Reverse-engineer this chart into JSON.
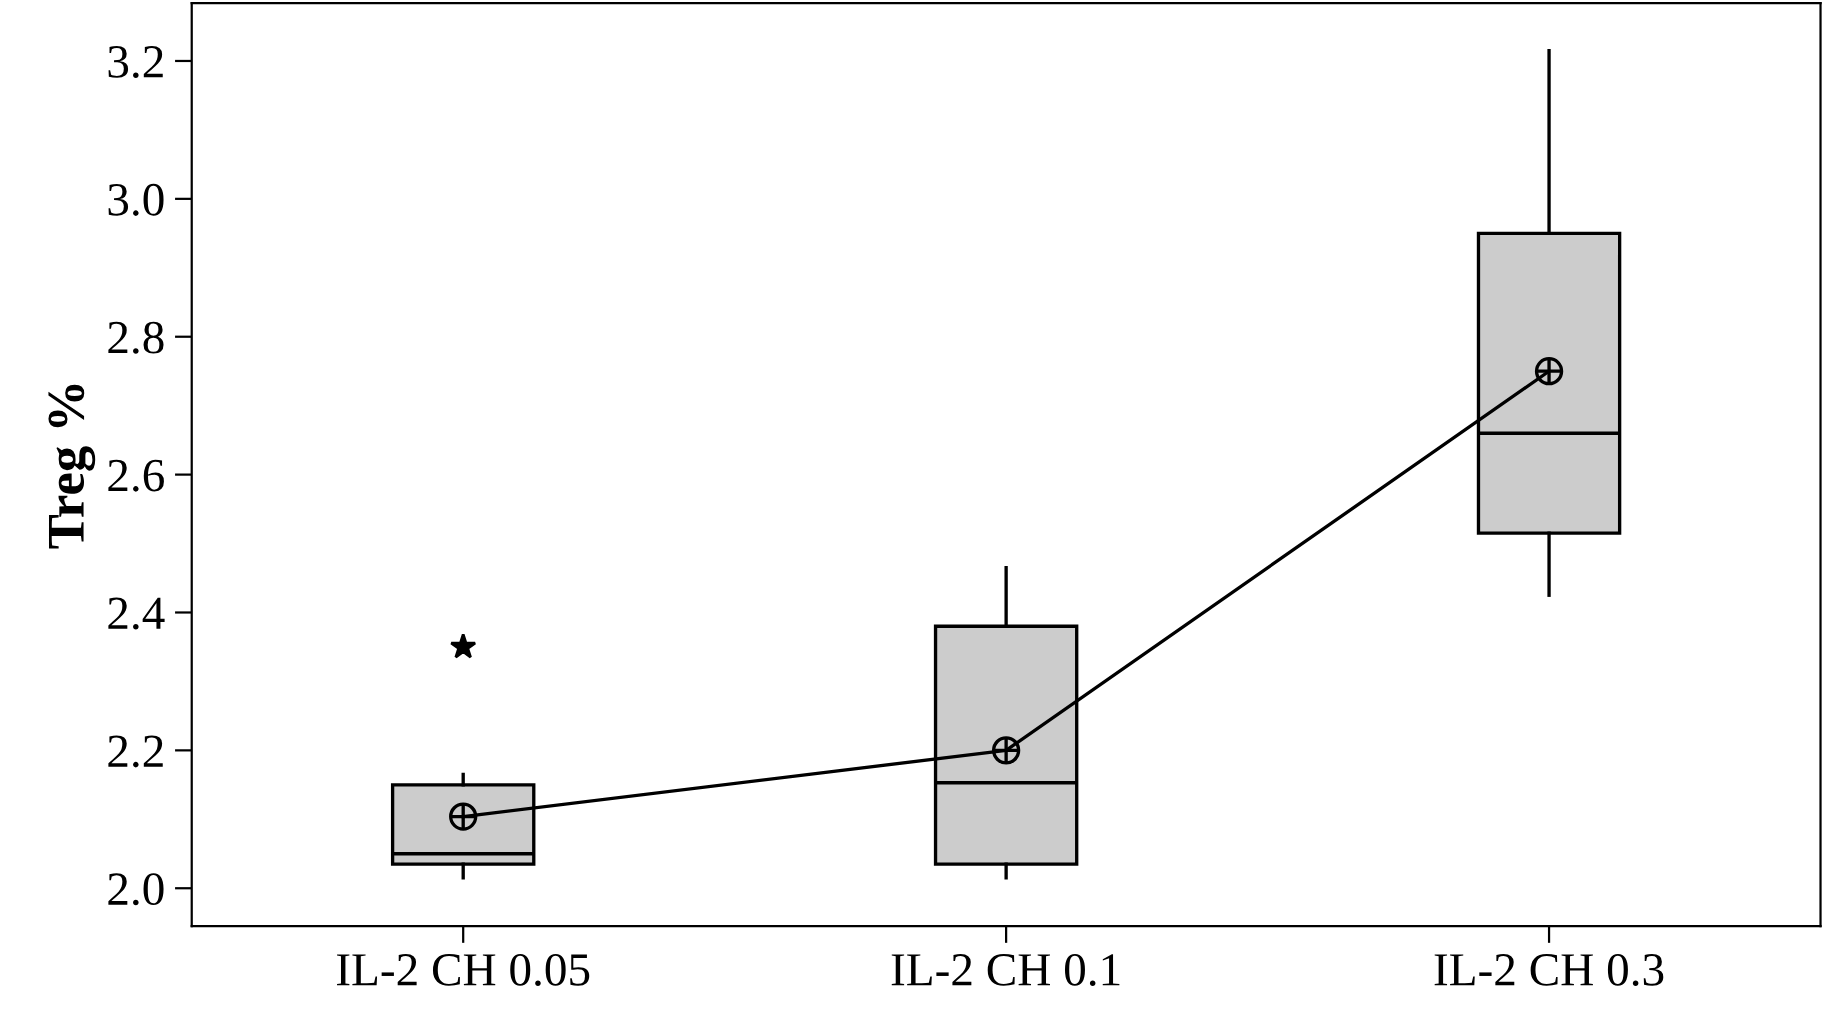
{
  "chart_data": {
    "type": "box",
    "ylabel": "Treg %",
    "categories": [
      "IL-2 CH 0.05",
      "IL-2 CH 0.1",
      "IL-2 CH 0.3"
    ],
    "boxes": [
      {
        "low": 2.015,
        "q1": 2.035,
        "median": 2.05,
        "q3": 2.15,
        "high": 2.165,
        "mean": 2.104,
        "outliers": [
          2.35
        ]
      },
      {
        "low": 2.015,
        "q1": 2.035,
        "median": 2.153,
        "q3": 2.38,
        "high": 2.465,
        "mean": 2.2
      },
      {
        "low": 2.425,
        "q1": 2.515,
        "median": 2.66,
        "q3": 2.95,
        "high": 3.215,
        "mean": 2.75
      }
    ],
    "color": "#cccccc",
    "series": [
      {
        "type": "line",
        "color": "#000000",
        "x": [
          "IL-2 CH 0.05",
          "IL-2 CH 0.1",
          "IL-2 CH 0.3"
        ],
        "values": [
          2.104,
          2.2,
          2.75
        ]
      }
    ],
    "ylim": [
      1.945,
      3.284
    ],
    "yticks": [
      {
        "value": 2.0,
        "label": "2.0"
      },
      {
        "value": 2.2,
        "label": "2.2"
      },
      {
        "value": 2.4,
        "label": "2.4"
      },
      {
        "value": 2.6,
        "label": "2.6"
      },
      {
        "value": 2.8,
        "label": "2.8"
      },
      {
        "value": 3.0,
        "label": "3.0"
      },
      {
        "value": 3.2,
        "label": "3.2"
      }
    ],
    "grid": false,
    "legend": false
  }
}
